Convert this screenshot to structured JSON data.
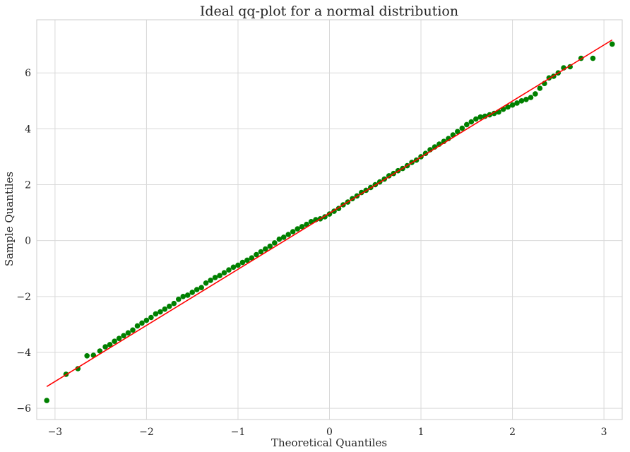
{
  "chart_data": {
    "type": "scatter",
    "title": "Ideal qq-plot for a normal distribution",
    "xlabel": "Theoretical Quantiles",
    "ylabel": "Sample Quantiles",
    "xlim": [
      -3.2,
      3.2
    ],
    "ylim": [
      -6.4,
      7.9
    ],
    "x_ticks": [
      -3,
      -2,
      -1,
      0,
      1,
      2,
      3
    ],
    "x_tick_labels": [
      "−3",
      "−2",
      "−1",
      "0",
      "1",
      "2",
      "3"
    ],
    "y_ticks": [
      -6,
      -4,
      -2,
      0,
      2,
      4,
      6
    ],
    "y_tick_labels": [
      "−6",
      "−4",
      "−2",
      "0",
      "2",
      "4",
      "6"
    ],
    "grid": true,
    "series": [
      {
        "kind": "points",
        "color": "#008000",
        "x": [
          -3.09,
          -2.88,
          -2.75,
          -2.65,
          -2.58,
          -2.51,
          -2.45,
          -2.4,
          -2.35,
          -2.3,
          -2.25,
          -2.2,
          -2.15,
          -2.1,
          -2.05,
          -2.0,
          -1.95,
          -1.9,
          -1.85,
          -1.8,
          -1.75,
          -1.7,
          -1.65,
          -1.6,
          -1.55,
          -1.5,
          -1.45,
          -1.4,
          -1.35,
          -1.3,
          -1.25,
          -1.2,
          -1.15,
          -1.1,
          -1.05,
          -1.0,
          -0.95,
          -0.9,
          -0.85,
          -0.8,
          -0.75,
          -0.7,
          -0.65,
          -0.6,
          -0.55,
          -0.5,
          -0.45,
          -0.4,
          -0.35,
          -0.3,
          -0.25,
          -0.2,
          -0.15,
          -0.1,
          -0.05,
          0.0,
          0.05,
          0.1,
          0.15,
          0.2,
          0.25,
          0.3,
          0.35,
          0.4,
          0.45,
          0.5,
          0.55,
          0.6,
          0.65,
          0.7,
          0.75,
          0.8,
          0.85,
          0.9,
          0.95,
          1.0,
          1.05,
          1.1,
          1.15,
          1.2,
          1.25,
          1.3,
          1.35,
          1.4,
          1.45,
          1.5,
          1.55,
          1.6,
          1.65,
          1.7,
          1.75,
          1.8,
          1.85,
          1.9,
          1.95,
          2.0,
          2.05,
          2.1,
          2.15,
          2.2,
          2.25,
          2.3,
          2.35,
          2.4,
          2.45,
          2.5,
          2.56,
          2.63,
          2.75,
          2.88,
          3.09
        ],
        "y": [
          -5.72,
          -4.78,
          -4.58,
          -4.12,
          -4.1,
          -3.95,
          -3.8,
          -3.72,
          -3.6,
          -3.5,
          -3.4,
          -3.3,
          -3.2,
          -3.05,
          -2.95,
          -2.85,
          -2.75,
          -2.62,
          -2.55,
          -2.45,
          -2.35,
          -2.25,
          -2.1,
          -2.0,
          -1.95,
          -1.85,
          -1.75,
          -1.68,
          -1.52,
          -1.42,
          -1.32,
          -1.25,
          -1.15,
          -1.05,
          -0.95,
          -0.88,
          -0.78,
          -0.7,
          -0.62,
          -0.5,
          -0.4,
          -0.3,
          -0.2,
          -0.08,
          0.05,
          0.12,
          0.22,
          0.32,
          0.42,
          0.5,
          0.58,
          0.68,
          0.75,
          0.78,
          0.85,
          0.95,
          1.05,
          1.15,
          1.28,
          1.38,
          1.5,
          1.6,
          1.72,
          1.8,
          1.9,
          2.0,
          2.1,
          2.2,
          2.32,
          2.4,
          2.5,
          2.58,
          2.68,
          2.8,
          2.88,
          3.0,
          3.12,
          3.25,
          3.35,
          3.45,
          3.55,
          3.65,
          3.78,
          3.9,
          4.02,
          4.15,
          4.25,
          4.35,
          4.42,
          4.45,
          4.5,
          4.55,
          4.6,
          4.7,
          4.78,
          4.85,
          4.92,
          5.0,
          5.05,
          5.12,
          5.25,
          5.45,
          5.62,
          5.82,
          5.88,
          6.0,
          6.18,
          6.22,
          6.52,
          6.52,
          7.03
        ]
      },
      {
        "kind": "line",
        "color": "#ff0000",
        "x": [
          -3.09,
          3.09
        ],
        "y": [
          -5.22,
          7.18
        ]
      }
    ]
  }
}
